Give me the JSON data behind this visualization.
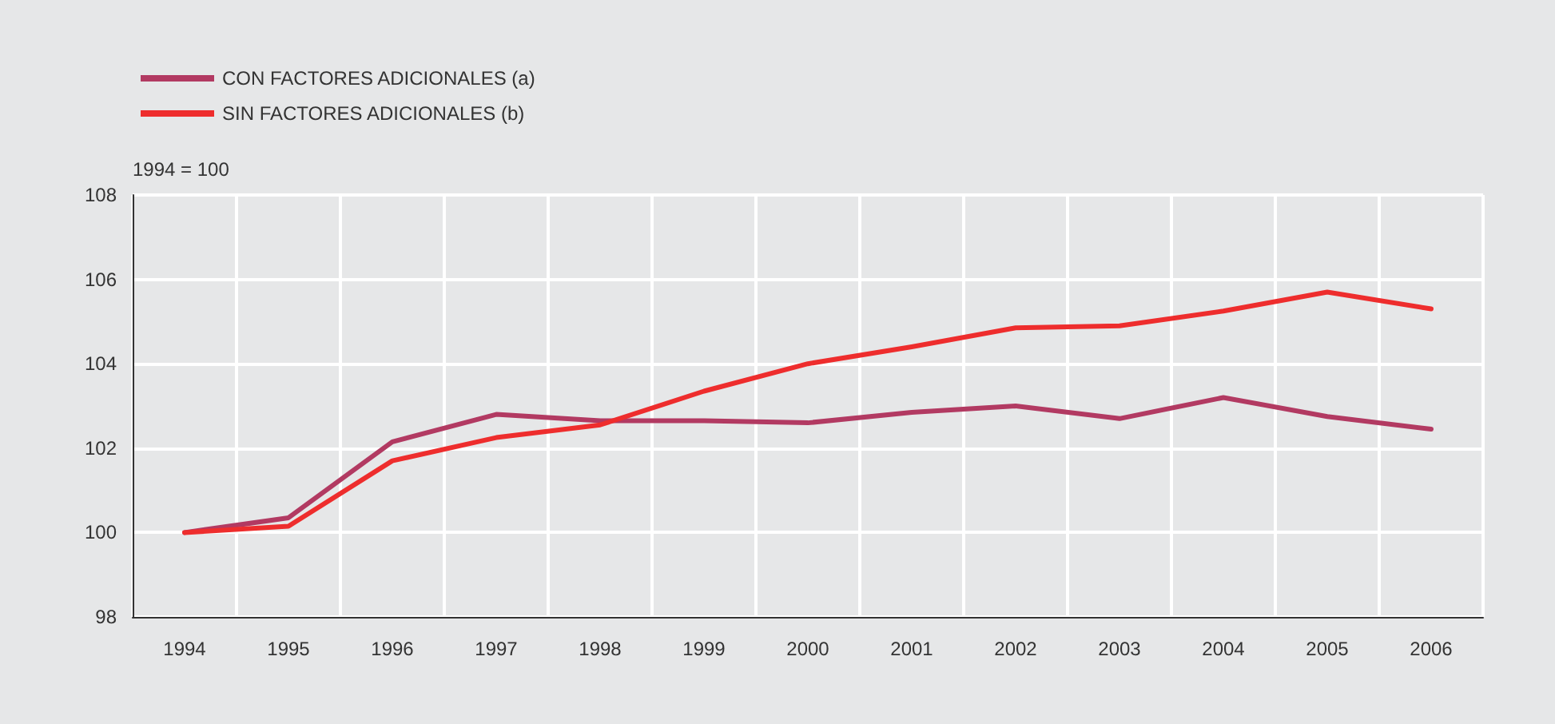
{
  "chart_data": {
    "type": "line",
    "ylabel": "1994 = 100",
    "categories": [
      "1994",
      "1995",
      "1996",
      "1997",
      "1998",
      "1999",
      "2000",
      "2001",
      "2002",
      "2003",
      "2004",
      "2005",
      "2006"
    ],
    "series": [
      {
        "name": "CON FACTORES ADICIONALES (a)",
        "color": "#b23a62",
        "values": [
          100,
          100.35,
          102.15,
          102.8,
          102.65,
          102.65,
          102.6,
          102.85,
          103.0,
          102.7,
          103.2,
          102.75,
          102.45
        ]
      },
      {
        "name": "SIN FACTORES ADICIONALES (b)",
        "color": "#ee2d2d",
        "values": [
          100,
          100.15,
          101.7,
          102.25,
          102.55,
          103.35,
          104.0,
          104.4,
          104.85,
          104.9,
          105.25,
          105.7,
          105.3
        ]
      }
    ],
    "ylim": [
      98,
      108
    ],
    "yticks": [
      98,
      100,
      102,
      104,
      106,
      108
    ],
    "grid": true,
    "legend": "top left",
    "marker": "none",
    "line_style": "solid"
  }
}
